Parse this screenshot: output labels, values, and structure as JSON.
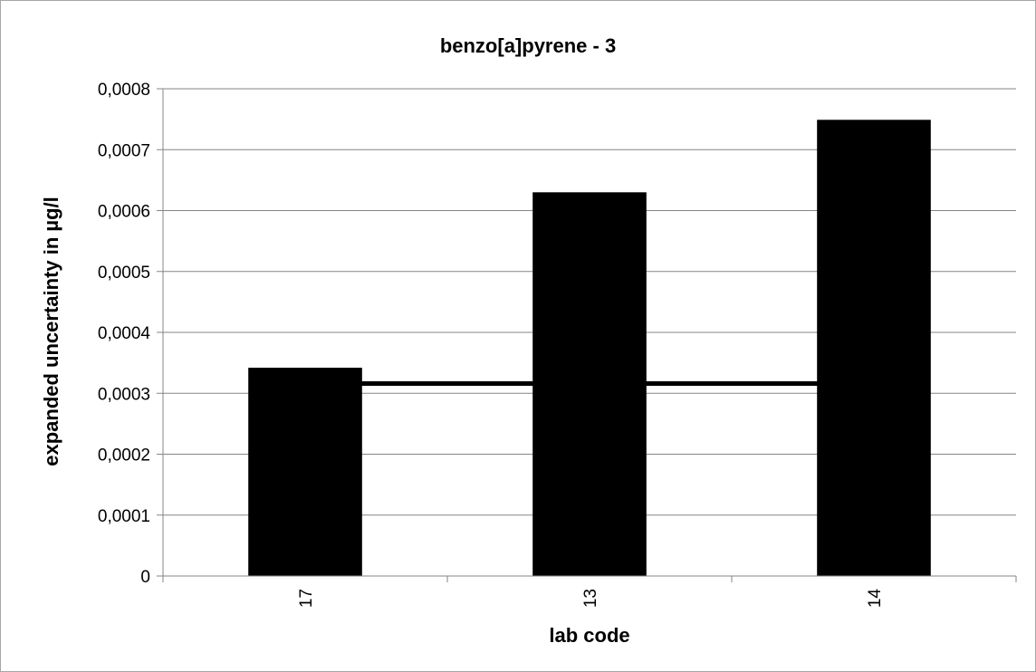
{
  "chart_data": {
    "type": "bar",
    "title": "benzo[a]pyrene - 3",
    "xlabel": "lab code",
    "ylabel": "expanded uncertainty in µg/l",
    "categories": [
      "17",
      "13",
      "14"
    ],
    "values": [
      0.000342,
      0.00063,
      0.000749
    ],
    "reference_line": 0.000316,
    "ylim": [
      0,
      0.0008
    ],
    "yticks": [
      "0",
      "0,0001",
      "0,0002",
      "0,0003",
      "0,0004",
      "0,0005",
      "0,0006",
      "0,0007",
      "0,0008"
    ],
    "grid": true,
    "legend": "none",
    "bar_color": "#000000",
    "line_color": "#000000",
    "grid_color": "#868686"
  }
}
